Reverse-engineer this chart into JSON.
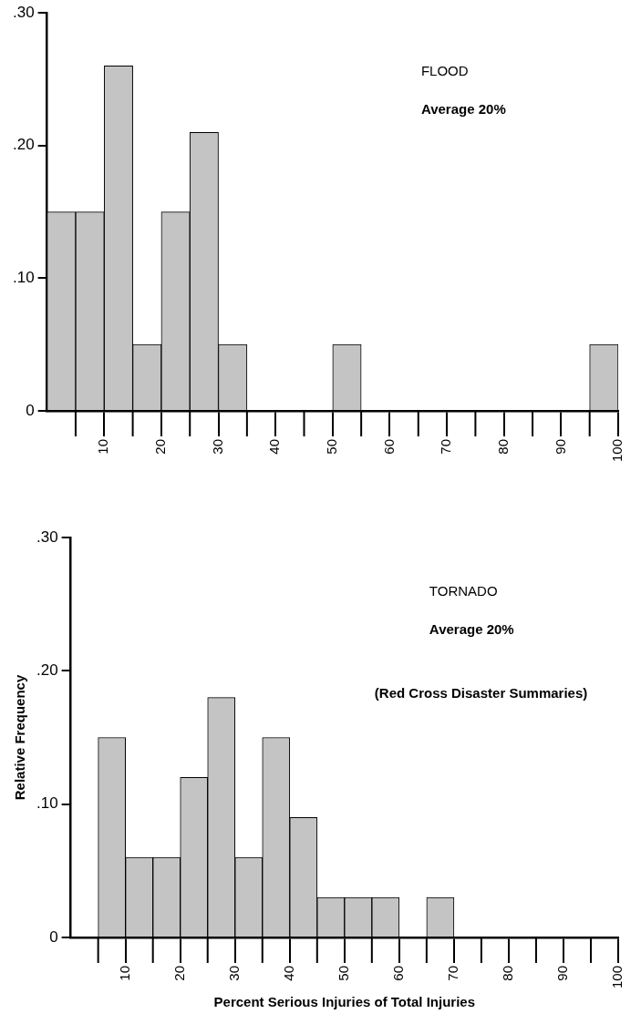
{
  "chart_data": [
    {
      "type": "histogram",
      "annotations": [
        "FLOOD",
        "Average 20%"
      ],
      "bins": [
        0,
        5,
        10,
        15,
        20,
        25,
        30,
        35,
        40,
        45,
        50,
        55,
        60,
        65,
        70,
        75,
        80,
        85,
        90,
        95,
        100
      ],
      "values": [
        0.15,
        0.15,
        0.26,
        0.05,
        0.15,
        0.21,
        0.05,
        0,
        0,
        0,
        0.05,
        0,
        0,
        0,
        0,
        0,
        0,
        0,
        0,
        0.05
      ],
      "color": "#c4c4c4",
      "xlim": [
        0,
        100
      ],
      "xticks": [
        10,
        20,
        30,
        40,
        50,
        60,
        70,
        80,
        90,
        100
      ],
      "ylim": [
        0,
        0.3
      ],
      "yticks": [
        {
          "value": 0,
          "label": "0"
        },
        {
          "value": 0.1,
          "label": ".10"
        },
        {
          "value": 0.2,
          "label": ".20"
        },
        {
          "value": 0.3,
          "label": ".30"
        }
      ],
      "grid": false
    },
    {
      "type": "histogram",
      "xlabel": "Percent Serious Injuries of Total Injuries",
      "ylabel": "Relative Frequency",
      "annotations": [
        "TORNADO",
        "Average 20%",
        "(Red Cross Disaster Summaries)"
      ],
      "bins": [
        0,
        5,
        10,
        15,
        20,
        25,
        30,
        35,
        40,
        45,
        50,
        55,
        60,
        65,
        70,
        75,
        80,
        85,
        90,
        95,
        100
      ],
      "values": [
        0,
        0.15,
        0.06,
        0.06,
        0.12,
        0.18,
        0.06,
        0.15,
        0.09,
        0.03,
        0.03,
        0.03,
        0,
        0.03,
        0,
        0,
        0,
        0,
        0,
        0
      ],
      "color": "#c4c4c4",
      "xlim": [
        0,
        100
      ],
      "xticks": [
        10,
        20,
        30,
        40,
        50,
        60,
        70,
        80,
        90,
        100
      ],
      "ylim": [
        0,
        0.3
      ],
      "yticks": [
        {
          "value": 0,
          "label": "0"
        },
        {
          "value": 0.1,
          "label": ".10"
        },
        {
          "value": 0.2,
          "label": ".20"
        },
        {
          "value": 0.3,
          "label": ".30"
        }
      ],
      "grid": false
    }
  ]
}
